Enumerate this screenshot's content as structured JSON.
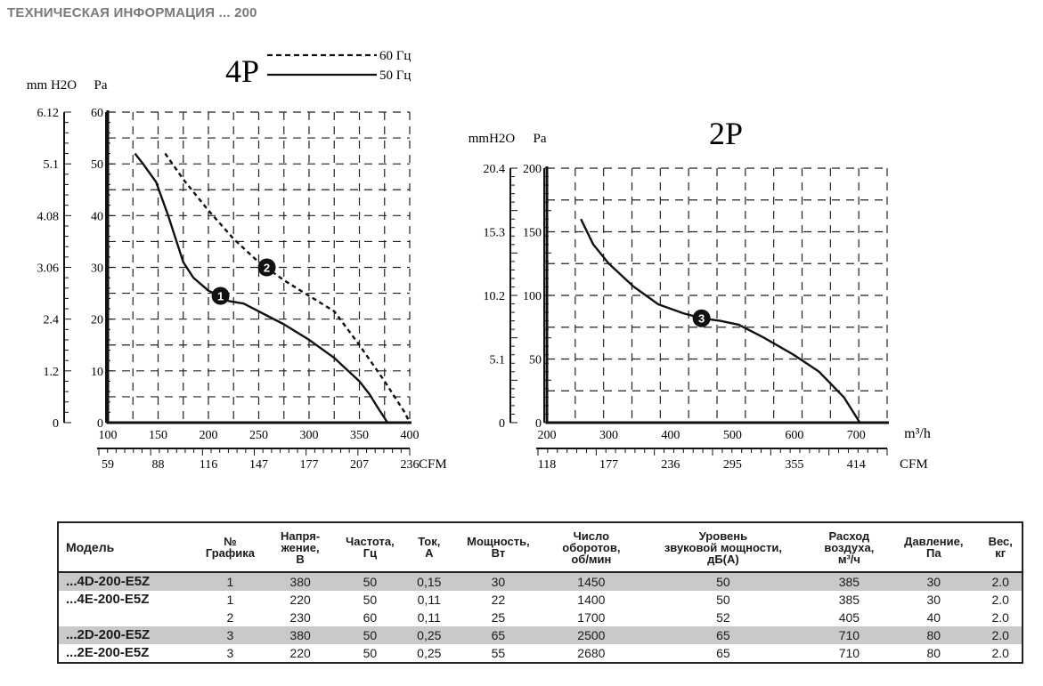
{
  "page": {
    "title": "ТЕХНИЧЕСКАЯ ИНФОРМАЦИЯ ... 200"
  },
  "chart_data": [
    {
      "type": "line",
      "title": "4P",
      "legend": [
        {
          "name": "60 Гц",
          "style": "dashed"
        },
        {
          "name": "50 Гц",
          "style": "solid"
        }
      ],
      "legend_position": "top-right",
      "grid": true,
      "xlim": [
        100,
        400
      ],
      "ylim": [
        0,
        60
      ],
      "x_ticks": [
        "100",
        "150",
        "200",
        "250",
        "300",
        "350",
        "400"
      ],
      "y_ticks": [
        "0",
        "10",
        "20",
        "30",
        "40",
        "50",
        "60"
      ],
      "ylabel": "Pa",
      "ylabel_alt": "mm H2O",
      "y_alt_ticks": [
        {
          "label": "0",
          "value": 0
        },
        {
          "label": "1.2",
          "value": 10
        },
        {
          "label": "2.4",
          "value": 20
        },
        {
          "label": "3.06",
          "value": 30
        },
        {
          "label": "4.08",
          "value": 40
        },
        {
          "label": "5.1",
          "value": 50
        },
        {
          "label": "6.12",
          "value": 60
        }
      ],
      "xlabel_alt": "CFM",
      "x_alt_ticks": [
        {
          "label": "59",
          "value": 100
        },
        {
          "label": "88",
          "value": 150
        },
        {
          "label": "116",
          "value": 200
        },
        {
          "label": "147",
          "value": 250
        },
        {
          "label": "177",
          "value": 300
        },
        {
          "label": "207",
          "value": 350
        },
        {
          "label": "236",
          "value": 400
        }
      ],
      "series": [
        {
          "name": "50 Гц",
          "marker": "1",
          "style": "solid",
          "marker_point": [
            212,
            24.5
          ],
          "points": [
            [
              127,
              52
            ],
            [
              135,
              50
            ],
            [
              148,
              46.5
            ],
            [
              160,
              40
            ],
            [
              175,
              31
            ],
            [
              185,
              28
            ],
            [
              200,
              25.5
            ],
            [
              212,
              24.5
            ],
            [
              220,
              23.5
            ],
            [
              235,
              23
            ],
            [
              250,
              21.5
            ],
            [
              275,
              19
            ],
            [
              300,
              16
            ],
            [
              325,
              12.5
            ],
            [
              350,
              8
            ],
            [
              360,
              5.5
            ],
            [
              368,
              3
            ],
            [
              378,
              0
            ]
          ]
        },
        {
          "name": "60 Гц",
          "marker": "2",
          "style": "dashed",
          "marker_point": [
            258,
            30
          ],
          "points": [
            [
              157,
              52
            ],
            [
              175,
              47
            ],
            [
              200,
              41
            ],
            [
              225,
              35.5
            ],
            [
              250,
              31
            ],
            [
              275,
              27.5
            ],
            [
              300,
              24.5
            ],
            [
              325,
              21.5
            ],
            [
              350,
              15
            ],
            [
              375,
              8
            ],
            [
              395,
              2
            ],
            [
              400,
              0
            ]
          ]
        }
      ]
    },
    {
      "type": "line",
      "title": "2P",
      "grid": true,
      "xlim": [
        200,
        750
      ],
      "ylim": [
        0,
        200
      ],
      "x_ticks": [
        "200",
        "300",
        "400",
        "500",
        "600",
        "700"
      ],
      "y_ticks": [
        "0",
        "50",
        "100",
        "150",
        "200"
      ],
      "ylabel": "Pa",
      "ylabel_alt": "mmH2O",
      "y_alt_ticks": [
        {
          "label": "0",
          "value": 0
        },
        {
          "label": "5.1",
          "value": 50
        },
        {
          "label": "10.2",
          "value": 100
        },
        {
          "label": "15.3",
          "value": 150
        },
        {
          "label": "20.4",
          "value": 200
        }
      ],
      "xlabel": "m³/h",
      "xlabel_alt": "CFM",
      "x_alt_ticks": [
        {
          "label": "118",
          "value": 200
        },
        {
          "label": "177",
          "value": 300
        },
        {
          "label": "236",
          "value": 400
        },
        {
          "label": "295",
          "value": 500
        },
        {
          "label": "355",
          "value": 600
        },
        {
          "label": "414",
          "value": 700
        }
      ],
      "series": [
        {
          "marker": "3",
          "style": "solid",
          "marker_point": [
            450,
            82
          ],
          "points": [
            [
              255,
              160
            ],
            [
              275,
              140
            ],
            [
              300,
              125
            ],
            [
              340,
              107
            ],
            [
              380,
              93
            ],
            [
              420,
              86
            ],
            [
              450,
              82
            ],
            [
              480,
              80
            ],
            [
              510,
              77
            ],
            [
              550,
              67
            ],
            [
              600,
              53
            ],
            [
              640,
              40
            ],
            [
              680,
              20
            ],
            [
              706,
              0
            ]
          ]
        }
      ]
    }
  ],
  "table": {
    "headers": [
      "Модель",
      "№\nГрафика",
      "Напря-\nжение,\nВ",
      "Частота,\nГц",
      "Ток,\nА",
      "Мощность,\nВт",
      "Число\nоборотов,\nоб/мин",
      "Уровень\nзвуковой мощности,\nдБ(А)",
      "Расход\nвоздуха,\nм³/ч",
      "Давление,\nПа",
      "Вес,\nкг"
    ],
    "rows": [
      {
        "model": "...4D-200-E5Z",
        "graph": "1",
        "voltage": "380",
        "freq": "50",
        "current": "0,15",
        "power": "30",
        "rpm": "1450",
        "noise": "50",
        "airflow": "385",
        "pressure": "30",
        "weight": "2.0"
      },
      {
        "model": "...4E-200-E5Z",
        "graph": "1",
        "voltage": "220",
        "freq": "50",
        "current": "0,11",
        "power": "22",
        "rpm": "1400",
        "noise": "50",
        "airflow": "385",
        "pressure": "30",
        "weight": "2.0"
      },
      {
        "model": "",
        "graph": "2",
        "voltage": "230",
        "freq": "60",
        "current": "0,11",
        "power": "25",
        "rpm": "1700",
        "noise": "52",
        "airflow": "405",
        "pressure": "40",
        "weight": "2.0"
      },
      {
        "model": "...2D-200-E5Z",
        "graph": "3",
        "voltage": "380",
        "freq": "50",
        "current": "0,25",
        "power": "65",
        "rpm": "2500",
        "noise": "65",
        "airflow": "710",
        "pressure": "80",
        "weight": "2.0"
      },
      {
        "model": "...2E-200-E5Z",
        "graph": "3",
        "voltage": "220",
        "freq": "50",
        "current": "0,25",
        "power": "55",
        "rpm": "2680",
        "noise": "65",
        "airflow": "710",
        "pressure": "80",
        "weight": "2.0"
      }
    ],
    "shaded_rows": [
      0,
      3
    ],
    "gap_after_rows": [
      0,
      2
    ]
  }
}
